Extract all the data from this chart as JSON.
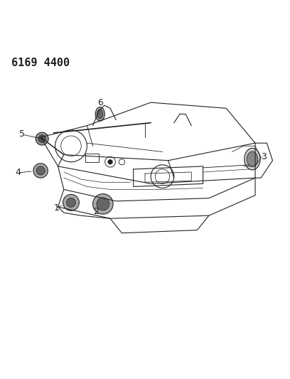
{
  "title": "6169 4400",
  "bg_color": "#ffffff",
  "line_color": "#222222",
  "title_fontsize": 11,
  "label_fontsize": 9,
  "fig_width": 4.08,
  "fig_height": 5.33,
  "dpi": 100
}
